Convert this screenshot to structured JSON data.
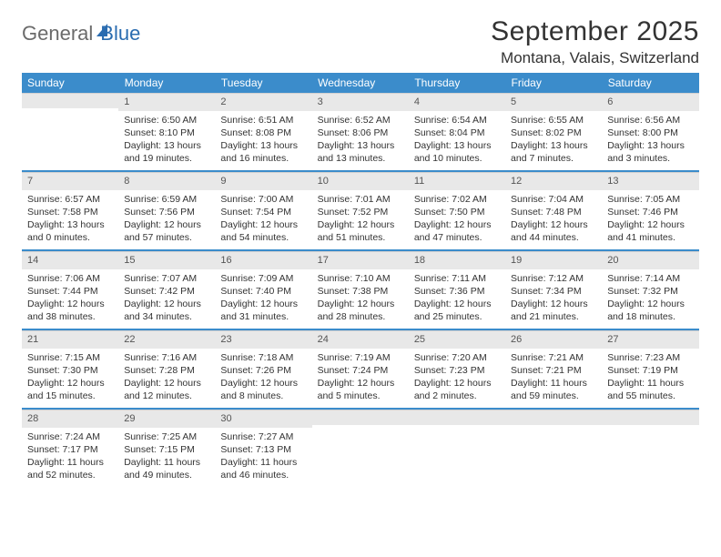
{
  "brand": {
    "part1": "General",
    "part2": "Blue"
  },
  "title": "September 2025",
  "location": "Montana, Valais, Switzerland",
  "colors": {
    "header_bg": "#3b8ccb",
    "header_text": "#ffffff",
    "daynum_bg": "#e8e8e8",
    "text": "#333333",
    "logo_gray": "#6b6b6b",
    "logo_blue": "#2a6cb0",
    "separator": "#3b8ccb"
  },
  "weekdays": [
    "Sunday",
    "Monday",
    "Tuesday",
    "Wednesday",
    "Thursday",
    "Friday",
    "Saturday"
  ],
  "weeks": [
    [
      {
        "n": "",
        "sr": "",
        "ss": "",
        "dl": ""
      },
      {
        "n": "1",
        "sr": "6:50 AM",
        "ss": "8:10 PM",
        "dl": "13 hours and 19 minutes."
      },
      {
        "n": "2",
        "sr": "6:51 AM",
        "ss": "8:08 PM",
        "dl": "13 hours and 16 minutes."
      },
      {
        "n": "3",
        "sr": "6:52 AM",
        "ss": "8:06 PM",
        "dl": "13 hours and 13 minutes."
      },
      {
        "n": "4",
        "sr": "6:54 AM",
        "ss": "8:04 PM",
        "dl": "13 hours and 10 minutes."
      },
      {
        "n": "5",
        "sr": "6:55 AM",
        "ss": "8:02 PM",
        "dl": "13 hours and 7 minutes."
      },
      {
        "n": "6",
        "sr": "6:56 AM",
        "ss": "8:00 PM",
        "dl": "13 hours and 3 minutes."
      }
    ],
    [
      {
        "n": "7",
        "sr": "6:57 AM",
        "ss": "7:58 PM",
        "dl": "13 hours and 0 minutes."
      },
      {
        "n": "8",
        "sr": "6:59 AM",
        "ss": "7:56 PM",
        "dl": "12 hours and 57 minutes."
      },
      {
        "n": "9",
        "sr": "7:00 AM",
        "ss": "7:54 PM",
        "dl": "12 hours and 54 minutes."
      },
      {
        "n": "10",
        "sr": "7:01 AM",
        "ss": "7:52 PM",
        "dl": "12 hours and 51 minutes."
      },
      {
        "n": "11",
        "sr": "7:02 AM",
        "ss": "7:50 PM",
        "dl": "12 hours and 47 minutes."
      },
      {
        "n": "12",
        "sr": "7:04 AM",
        "ss": "7:48 PM",
        "dl": "12 hours and 44 minutes."
      },
      {
        "n": "13",
        "sr": "7:05 AM",
        "ss": "7:46 PM",
        "dl": "12 hours and 41 minutes."
      }
    ],
    [
      {
        "n": "14",
        "sr": "7:06 AM",
        "ss": "7:44 PM",
        "dl": "12 hours and 38 minutes."
      },
      {
        "n": "15",
        "sr": "7:07 AM",
        "ss": "7:42 PM",
        "dl": "12 hours and 34 minutes."
      },
      {
        "n": "16",
        "sr": "7:09 AM",
        "ss": "7:40 PM",
        "dl": "12 hours and 31 minutes."
      },
      {
        "n": "17",
        "sr": "7:10 AM",
        "ss": "7:38 PM",
        "dl": "12 hours and 28 minutes."
      },
      {
        "n": "18",
        "sr": "7:11 AM",
        "ss": "7:36 PM",
        "dl": "12 hours and 25 minutes."
      },
      {
        "n": "19",
        "sr": "7:12 AM",
        "ss": "7:34 PM",
        "dl": "12 hours and 21 minutes."
      },
      {
        "n": "20",
        "sr": "7:14 AM",
        "ss": "7:32 PM",
        "dl": "12 hours and 18 minutes."
      }
    ],
    [
      {
        "n": "21",
        "sr": "7:15 AM",
        "ss": "7:30 PM",
        "dl": "12 hours and 15 minutes."
      },
      {
        "n": "22",
        "sr": "7:16 AM",
        "ss": "7:28 PM",
        "dl": "12 hours and 12 minutes."
      },
      {
        "n": "23",
        "sr": "7:18 AM",
        "ss": "7:26 PM",
        "dl": "12 hours and 8 minutes."
      },
      {
        "n": "24",
        "sr": "7:19 AM",
        "ss": "7:24 PM",
        "dl": "12 hours and 5 minutes."
      },
      {
        "n": "25",
        "sr": "7:20 AM",
        "ss": "7:23 PM",
        "dl": "12 hours and 2 minutes."
      },
      {
        "n": "26",
        "sr": "7:21 AM",
        "ss": "7:21 PM",
        "dl": "11 hours and 59 minutes."
      },
      {
        "n": "27",
        "sr": "7:23 AM",
        "ss": "7:19 PM",
        "dl": "11 hours and 55 minutes."
      }
    ],
    [
      {
        "n": "28",
        "sr": "7:24 AM",
        "ss": "7:17 PM",
        "dl": "11 hours and 52 minutes."
      },
      {
        "n": "29",
        "sr": "7:25 AM",
        "ss": "7:15 PM",
        "dl": "11 hours and 49 minutes."
      },
      {
        "n": "30",
        "sr": "7:27 AM",
        "ss": "7:13 PM",
        "dl": "11 hours and 46 minutes."
      },
      {
        "n": "",
        "sr": "",
        "ss": "",
        "dl": ""
      },
      {
        "n": "",
        "sr": "",
        "ss": "",
        "dl": ""
      },
      {
        "n": "",
        "sr": "",
        "ss": "",
        "dl": ""
      },
      {
        "n": "",
        "sr": "",
        "ss": "",
        "dl": ""
      }
    ]
  ],
  "labels": {
    "sunrise": "Sunrise:",
    "sunset": "Sunset:",
    "daylight": "Daylight:"
  }
}
